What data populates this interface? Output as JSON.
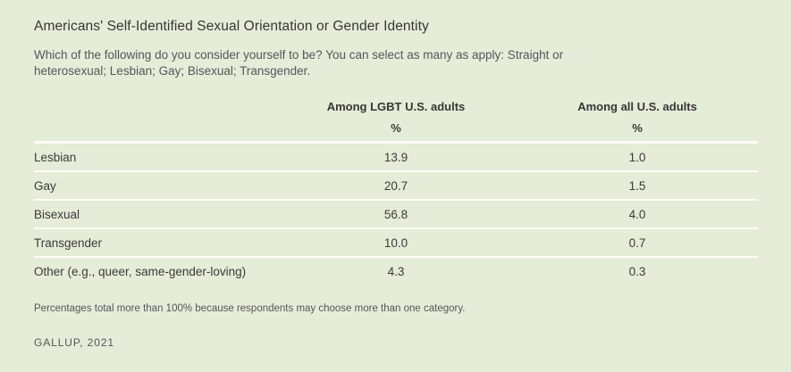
{
  "colors": {
    "background": "#e5ecd7",
    "divider": "#fdfef8",
    "title_text": "#373737",
    "body_text": "#3b3b3b",
    "muted_text": "#54575b"
  },
  "header": {
    "title": "Americans' Self-Identified Sexual Orientation or Gender Identity",
    "subtitle": "Which of the following do you consider yourself to be? You can select as many as apply: Straight or\nheterosexual; Lesbian; Gay; Bisexual; Transgender."
  },
  "table": {
    "column_headers": {
      "lgbt": "Among LGBT U.S. adults",
      "all": "Among all U.S. adults"
    },
    "unit_row": {
      "lgbt": "%",
      "all": "%"
    },
    "rows": [
      {
        "label": "Lesbian",
        "lgbt": "13.9",
        "all": "1.0"
      },
      {
        "label": "Gay",
        "lgbt": "20.7",
        "all": "1.5"
      },
      {
        "label": "Bisexual",
        "lgbt": "56.8",
        "all": "4.0"
      },
      {
        "label": "Transgender",
        "lgbt": "10.0",
        "all": "0.7"
      },
      {
        "label": "Other (e.g., queer, same-gender-loving)",
        "lgbt": "4.3",
        "all": "0.3"
      }
    ]
  },
  "footnote": "Percentages total more than 100% because respondents may choose more than one category.",
  "source": "GALLUP, 2021",
  "chart_data": {
    "type": "table",
    "title": "Americans' Self-Identified Sexual Orientation or Gender Identity",
    "subtitle": "Which of the following do you consider yourself to be? You can select as many as apply: Straight or heterosexual; Lesbian; Gay; Bisexual; Transgender.",
    "columns": [
      "",
      "Among LGBT U.S. adults",
      "Among all U.S. adults"
    ],
    "units": [
      "%",
      "%"
    ],
    "categories": [
      "Lesbian",
      "Gay",
      "Bisexual",
      "Transgender",
      "Other (e.g., queer, same-gender-loving)"
    ],
    "series": [
      {
        "name": "Among LGBT U.S. adults",
        "values": [
          13.9,
          20.7,
          56.8,
          10.0,
          4.3
        ]
      },
      {
        "name": "Among all U.S. adults",
        "values": [
          1.0,
          1.5,
          4.0,
          0.7,
          0.3
        ]
      }
    ],
    "footnote": "Percentages total more than 100% because respondents may choose more than one category.",
    "source": "GALLUP, 2021"
  }
}
